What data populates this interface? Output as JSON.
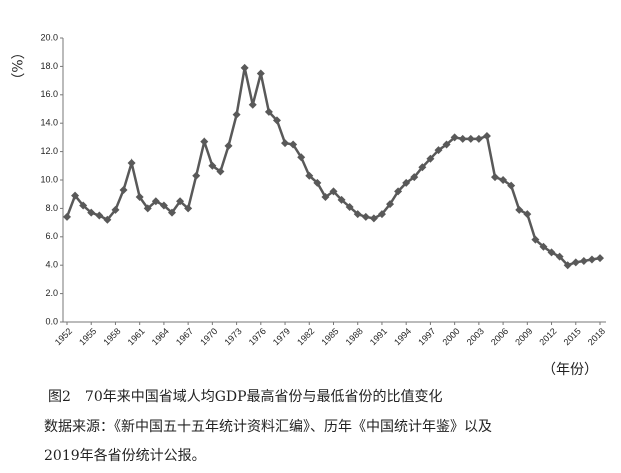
{
  "chart_data": {
    "type": "line",
    "y_label": "（%）",
    "x_label": "（年份）",
    "caption": "图2　70年来中国省域人均GDP最高省份与最低省份的比值变化",
    "source": [
      "数据来源：《新中国五十五年统计资料汇编》、历年《中国统计年鉴》以及",
      "2019年各省份统计公报。"
    ],
    "x": [
      1952,
      1953,
      1954,
      1955,
      1956,
      1957,
      1958,
      1959,
      1960,
      1961,
      1962,
      1963,
      1964,
      1965,
      1966,
      1967,
      1968,
      1969,
      1970,
      1971,
      1972,
      1973,
      1974,
      1975,
      1976,
      1977,
      1978,
      1979,
      1980,
      1981,
      1982,
      1983,
      1984,
      1985,
      1986,
      1987,
      1988,
      1989,
      1990,
      1991,
      1992,
      1993,
      1994,
      1995,
      1996,
      1997,
      1998,
      1999,
      2000,
      2001,
      2002,
      2003,
      2004,
      2005,
      2006,
      2007,
      2008,
      2009,
      2010,
      2011,
      2012,
      2013,
      2014,
      2015,
      2016,
      2017,
      2018
    ],
    "series": [
      {
        "color": "#595959",
        "values": [
          7.4,
          8.9,
          8.2,
          7.7,
          7.5,
          7.2,
          7.9,
          9.3,
          11.2,
          8.8,
          8.0,
          8.5,
          8.2,
          7.7,
          8.5,
          8.0,
          10.3,
          12.7,
          11.0,
          10.6,
          12.4,
          14.6,
          17.9,
          15.3,
          17.5,
          14.8,
          14.2,
          12.6,
          12.5,
          11.6,
          10.3,
          9.8,
          8.8,
          9.2,
          8.6,
          8.1,
          7.6,
          7.4,
          7.3,
          7.6,
          8.3,
          9.2,
          9.8,
          10.2,
          10.9,
          11.5,
          12.1,
          12.5,
          13.0,
          12.9,
          12.9,
          12.9,
          13.1,
          10.2,
          10.0,
          9.6,
          7.9,
          7.6,
          5.8,
          5.3,
          4.9,
          4.6,
          4.0,
          4.2,
          4.3,
          4.4,
          4.5
        ]
      }
    ],
    "xlim": [
      1952,
      2018
    ],
    "xticks": [
      1952,
      1955,
      1958,
      1961,
      1964,
      1967,
      1970,
      1973,
      1976,
      1979,
      1982,
      1985,
      1988,
      1991,
      1994,
      1997,
      2000,
      2003,
      2006,
      2009,
      2012,
      2015,
      2018
    ],
    "ylim": [
      0,
      20
    ],
    "yticks": [
      {
        "value": 0,
        "label": "0.0"
      },
      {
        "value": 2,
        "label": "2.0"
      },
      {
        "value": 4,
        "label": "4.0"
      },
      {
        "value": 6,
        "label": "6.0"
      },
      {
        "value": 8,
        "label": "8.0"
      },
      {
        "value": 10,
        "label": "10.0"
      },
      {
        "value": 12,
        "label": "12.0"
      },
      {
        "value": 14,
        "label": "14.0"
      },
      {
        "value": 16,
        "label": "16.0"
      },
      {
        "value": 18,
        "label": "18.0"
      },
      {
        "value": 20,
        "label": "20.0"
      }
    ],
    "grid": false
  }
}
